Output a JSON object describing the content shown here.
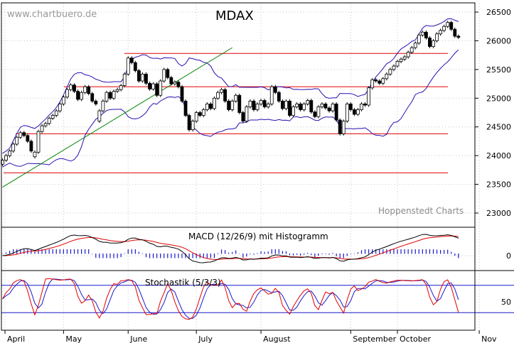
{
  "chart_data": [
    {
      "type": "candlestick",
      "title": "MDAX",
      "watermark": "www.chartbuero.de",
      "credit": "Hoppenstedt Charts",
      "y_ticks": [
        23000,
        23500,
        24000,
        24500,
        25000,
        25500,
        26000,
        26500
      ],
      "ylim": [
        22900,
        26600
      ],
      "months": [
        "April",
        "May",
        "June",
        "July",
        "August",
        "September",
        "October",
        "Nov"
      ],
      "horizontal_levels": [
        23700,
        24380,
        25200,
        25780
      ],
      "trendline": {
        "from": [
          0,
          23450
        ],
        "to": [
          64,
          25880
        ]
      },
      "candles": [
        [
          23850,
          23920
        ],
        [
          23920,
          24000
        ],
        [
          24000,
          24080
        ],
        [
          24080,
          24200
        ],
        [
          24200,
          24320
        ],
        [
          24320,
          24400
        ],
        [
          24400,
          24350
        ],
        [
          24350,
          24250
        ],
        [
          24250,
          24080
        ],
        [
          23980,
          24060
        ],
        [
          24060,
          24420
        ],
        [
          24420,
          24520
        ],
        [
          24520,
          24560
        ],
        [
          24560,
          24650
        ],
        [
          24650,
          24700
        ],
        [
          24700,
          24780
        ],
        [
          24780,
          24900
        ],
        [
          24900,
          25020
        ],
        [
          25020,
          25150
        ],
        [
          25150,
          25230
        ],
        [
          25230,
          25120
        ],
        [
          25120,
          24980
        ],
        [
          24980,
          25100
        ],
        [
          25100,
          25200
        ],
        [
          25200,
          25080
        ],
        [
          25080,
          24950
        ],
        [
          24950,
          24900
        ],
        [
          24600,
          24780
        ],
        [
          24780,
          24950
        ],
        [
          24950,
          25100
        ],
        [
          25100,
          25000
        ],
        [
          25000,
          25120
        ],
        [
          25120,
          25150
        ],
        [
          25150,
          25220
        ],
        [
          25220,
          25420
        ],
        [
          25420,
          25700
        ],
        [
          25700,
          25620
        ],
        [
          25620,
          25480
        ],
        [
          25480,
          25300
        ],
        [
          25300,
          25420
        ],
        [
          25420,
          25260
        ],
        [
          25260,
          25160
        ],
        [
          25160,
          25250
        ],
        [
          25250,
          25050
        ],
        [
          25050,
          25300
        ],
        [
          25300,
          25500
        ],
        [
          25500,
          25360
        ],
        [
          25360,
          25250
        ],
        [
          25250,
          25280
        ],
        [
          25280,
          25200
        ],
        [
          25200,
          24950
        ],
        [
          24950,
          24700
        ],
        [
          24700,
          24450
        ],
        [
          24450,
          24600
        ],
        [
          24600,
          24750
        ],
        [
          24750,
          24700
        ],
        [
          24700,
          24800
        ],
        [
          24800,
          24900
        ],
        [
          24900,
          24820
        ],
        [
          24820,
          25000
        ],
        [
          25000,
          25100
        ],
        [
          25100,
          25150
        ],
        [
          25150,
          24950
        ],
        [
          24950,
          24800
        ],
        [
          24800,
          24950
        ],
        [
          24950,
          25050
        ],
        [
          25050,
          24750
        ],
        [
          24750,
          24600
        ],
        [
          24600,
          24850
        ],
        [
          24850,
          24950
        ],
        [
          24950,
          24800
        ],
        [
          24800,
          24900
        ],
        [
          24900,
          24960
        ],
        [
          24960,
          24850
        ],
        [
          24850,
          24900
        ],
        [
          24900,
          25200
        ],
        [
          25200,
          25100
        ],
        [
          25100,
          24950
        ],
        [
          24950,
          24820
        ],
        [
          24820,
          24950
        ],
        [
          24950,
          24700
        ],
        [
          24700,
          24850
        ],
        [
          24850,
          24900
        ],
        [
          24900,
          24800
        ],
        [
          24800,
          24900
        ],
        [
          24900,
          24960
        ],
        [
          24960,
          24760
        ],
        [
          24760,
          24680
        ],
        [
          24680,
          24850
        ],
        [
          24850,
          24900
        ],
        [
          24900,
          24830
        ],
        [
          24830,
          24780
        ],
        [
          24780,
          24900
        ],
        [
          24900,
          24620
        ],
        [
          24620,
          24380
        ],
        [
          24380,
          24600
        ],
        [
          24600,
          24900
        ],
        [
          24900,
          24800
        ],
        [
          24800,
          24720
        ],
        [
          24720,
          24800
        ],
        [
          24800,
          24900
        ],
        [
          24900,
          24880
        ],
        [
          24880,
          25180
        ],
        [
          25180,
          25320
        ],
        [
          25320,
          25300
        ],
        [
          25300,
          25260
        ],
        [
          25260,
          25340
        ],
        [
          25340,
          25420
        ],
        [
          25420,
          25500
        ],
        [
          25500,
          25560
        ],
        [
          25560,
          25640
        ],
        [
          25640,
          25680
        ],
        [
          25680,
          25720
        ],
        [
          25720,
          25800
        ],
        [
          25800,
          25880
        ],
        [
          25880,
          25960
        ],
        [
          25960,
          26100
        ],
        [
          26100,
          26150
        ],
        [
          26150,
          26050
        ],
        [
          26050,
          25900
        ],
        [
          25900,
          26000
        ],
        [
          26000,
          26120
        ],
        [
          26120,
          26180
        ],
        [
          26180,
          26250
        ],
        [
          26250,
          26320
        ],
        [
          26320,
          26200
        ],
        [
          26200,
          26080
        ],
        [
          26080,
          26060
        ]
      ]
    },
    {
      "type": "line",
      "title": "MACD (12/26/9) mit Histogramm",
      "y_ticks": [
        0
      ]
    },
    {
      "type": "line",
      "title": "Stochastik (5/3/3)",
      "y_ticks": [
        50
      ]
    }
  ],
  "colors": {
    "support": "#e00000",
    "band": "#2a10b0",
    "trend": "#008000",
    "candle": "#000000",
    "fast": "#e00000",
    "slow": "#1a1acc"
  }
}
